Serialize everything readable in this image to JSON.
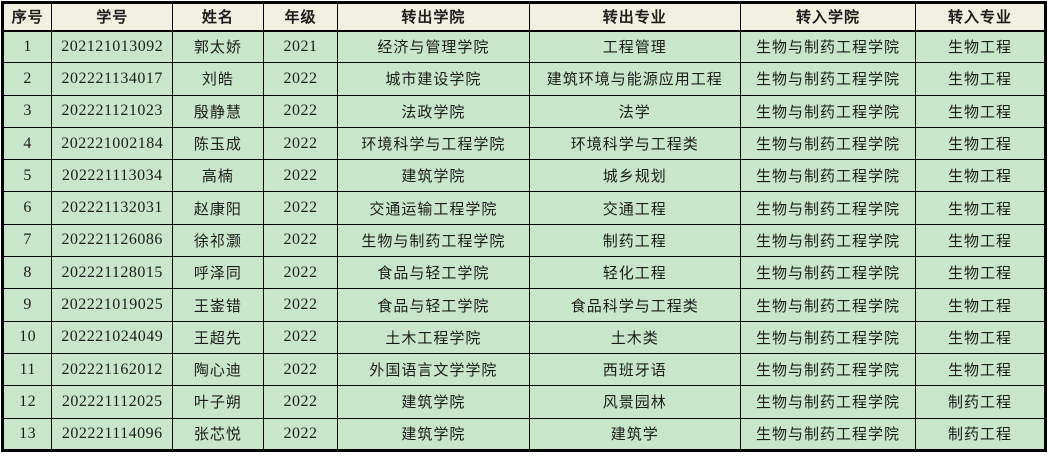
{
  "colors": {
    "header_bg": "#f2f0e1",
    "row_bg": "#c8e6c9",
    "border": "#000000",
    "text": "#1c1c1c"
  },
  "table": {
    "headers": [
      "序号",
      "学号",
      "姓名",
      "年级",
      "转出学院",
      "转出专业",
      "转入学院",
      "转入专业"
    ],
    "rows": [
      [
        "1",
        "202121013092",
        "郭太娇",
        "2021",
        "经济与管理学院",
        "工程管理",
        "生物与制药工程学院",
        "生物工程"
      ],
      [
        "2",
        "202221134017",
        "刘皓",
        "2022",
        "城市建设学院",
        "建筑环境与能源应用工程",
        "生物与制药工程学院",
        "生物工程"
      ],
      [
        "3",
        "202221121023",
        "殷静慧",
        "2022",
        "法政学院",
        "法学",
        "生物与制药工程学院",
        "生物工程"
      ],
      [
        "4",
        "202221002184",
        "陈玉成",
        "2022",
        "环境科学与工程学院",
        "环境科学与工程类",
        "生物与制药工程学院",
        "生物工程"
      ],
      [
        "5",
        "202221113034",
        "高楠",
        "2022",
        "建筑学院",
        "城乡规划",
        "生物与制药工程学院",
        "生物工程"
      ],
      [
        "6",
        "202221132031",
        "赵康阳",
        "2022",
        "交通运输工程学院",
        "交通工程",
        "生物与制药工程学院",
        "生物工程"
      ],
      [
        "7",
        "202221126086",
        "徐祁灏",
        "2022",
        "生物与制药工程学院",
        "制药工程",
        "生物与制药工程学院",
        "生物工程"
      ],
      [
        "8",
        "202221128015",
        "呼泽同",
        "2022",
        "食品与轻工学院",
        "轻化工程",
        "生物与制药工程学院",
        "生物工程"
      ],
      [
        "9",
        "202221019025",
        "王崟错",
        "2022",
        "食品与轻工学院",
        "食品科学与工程类",
        "生物与制药工程学院",
        "生物工程"
      ],
      [
        "10",
        "202221024049",
        "王超先",
        "2022",
        "土木工程学院",
        "土木类",
        "生物与制药工程学院",
        "生物工程"
      ],
      [
        "11",
        "202221162012",
        "陶心迪",
        "2022",
        "外国语言文学学院",
        "西班牙语",
        "生物与制药工程学院",
        "生物工程"
      ],
      [
        "12",
        "202221112025",
        "叶子朔",
        "2022",
        "建筑学院",
        "风景园林",
        "生物与制药工程学院",
        "制药工程"
      ],
      [
        "13",
        "202221114096",
        "张芯悦",
        "2022",
        "建筑学院",
        "建筑学",
        "生物与制药工程学院",
        "制药工程"
      ]
    ]
  }
}
